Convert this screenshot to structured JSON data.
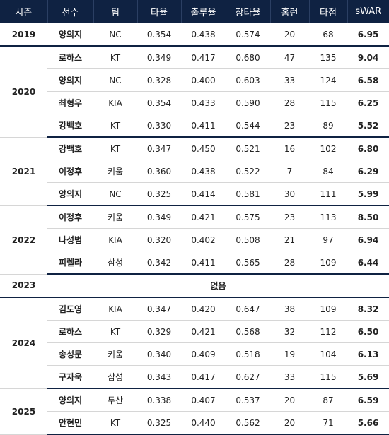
{
  "headers": [
    "시즌",
    "선수",
    "팀",
    "타율",
    "출루율",
    "장타율",
    "홈런",
    "타점",
    "sWAR"
  ],
  "seasons": [
    {
      "year": "2019",
      "rows": [
        {
          "player": "양의지",
          "team": "NC",
          "avg": "0.354",
          "obp": "0.438",
          "slg": "0.574",
          "hr": "20",
          "rbi": "68",
          "war": "6.95"
        }
      ]
    },
    {
      "year": "2020",
      "rows": [
        {
          "player": "로하스",
          "team": "KT",
          "avg": "0.349",
          "obp": "0.417",
          "slg": "0.680",
          "hr": "47",
          "rbi": "135",
          "war": "9.04"
        },
        {
          "player": "양의지",
          "team": "NC",
          "avg": "0.328",
          "obp": "0.400",
          "slg": "0.603",
          "hr": "33",
          "rbi": "124",
          "war": "6.58"
        },
        {
          "player": "최형우",
          "team": "KIA",
          "avg": "0.354",
          "obp": "0.433",
          "slg": "0.590",
          "hr": "28",
          "rbi": "115",
          "war": "6.25"
        },
        {
          "player": "강백호",
          "team": "KT",
          "avg": "0.330",
          "obp": "0.411",
          "slg": "0.544",
          "hr": "23",
          "rbi": "89",
          "war": "5.52"
        }
      ]
    },
    {
      "year": "2021",
      "rows": [
        {
          "player": "강백호",
          "team": "KT",
          "avg": "0.347",
          "obp": "0.450",
          "slg": "0.521",
          "hr": "16",
          "rbi": "102",
          "war": "6.80"
        },
        {
          "player": "이정후",
          "team": "키움",
          "avg": "0.360",
          "obp": "0.438",
          "slg": "0.522",
          "hr": "7",
          "rbi": "84",
          "war": "6.29"
        },
        {
          "player": "양의지",
          "team": "NC",
          "avg": "0.325",
          "obp": "0.414",
          "slg": "0.581",
          "hr": "30",
          "rbi": "111",
          "war": "5.99"
        }
      ]
    },
    {
      "year": "2022",
      "rows": [
        {
          "player": "이정후",
          "team": "키움",
          "avg": "0.349",
          "obp": "0.421",
          "slg": "0.575",
          "hr": "23",
          "rbi": "113",
          "war": "8.50"
        },
        {
          "player": "나성범",
          "team": "KIA",
          "avg": "0.320",
          "obp": "0.402",
          "slg": "0.508",
          "hr": "21",
          "rbi": "97",
          "war": "6.94"
        },
        {
          "player": "피렐라",
          "team": "삼성",
          "avg": "0.342",
          "obp": "0.411",
          "slg": "0.565",
          "hr": "28",
          "rbi": "109",
          "war": "6.44"
        }
      ]
    },
    {
      "year": "2023",
      "none_label": "없음",
      "rows": []
    },
    {
      "year": "2024",
      "rows": [
        {
          "player": "김도영",
          "team": "KIA",
          "avg": "0.347",
          "obp": "0.420",
          "slg": "0.647",
          "hr": "38",
          "rbi": "109",
          "war": "8.32"
        },
        {
          "player": "로하스",
          "team": "KT",
          "avg": "0.329",
          "obp": "0.421",
          "slg": "0.568",
          "hr": "32",
          "rbi": "112",
          "war": "6.50"
        },
        {
          "player": "송성문",
          "team": "키움",
          "avg": "0.340",
          "obp": "0.409",
          "slg": "0.518",
          "hr": "19",
          "rbi": "104",
          "war": "6.13"
        },
        {
          "player": "구자욱",
          "team": "삼성",
          "avg": "0.343",
          "obp": "0.417",
          "slg": "0.627",
          "hr": "33",
          "rbi": "115",
          "war": "5.69"
        }
      ]
    },
    {
      "year": "2025",
      "rows": [
        {
          "player": "양의지",
          "team": "두산",
          "avg": "0.338",
          "obp": "0.407",
          "slg": "0.537",
          "hr": "20",
          "rbi": "87",
          "war": "6.59"
        },
        {
          "player": "안현민",
          "team": "KT",
          "avg": "0.325",
          "obp": "0.440",
          "slg": "0.562",
          "hr": "20",
          "rbi": "71",
          "war": "5.66"
        }
      ]
    }
  ]
}
